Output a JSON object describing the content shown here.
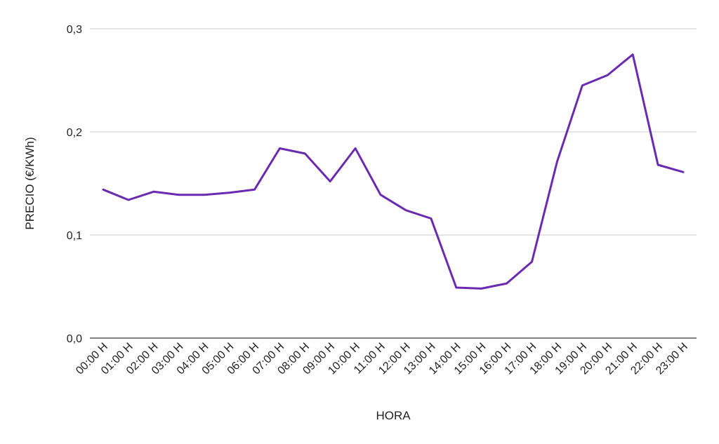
{
  "chart_data": {
    "type": "line",
    "title": "",
    "xlabel": "HORA",
    "ylabel": "PRECIO (€/KWh)",
    "ylim": [
      0,
      0.3
    ],
    "yticks": [
      0.0,
      0.1,
      0.2,
      0.3
    ],
    "ytick_labels": [
      "0,0",
      "0,1",
      "0,2",
      "0,3"
    ],
    "grid": true,
    "legend": "none",
    "categories": [
      "00:00 H",
      "01:00 H",
      "02:00 H",
      "03:00 H",
      "04:00 H",
      "05:00 H",
      "06:00 H",
      "07:00 H",
      "08:00 H",
      "09:00 H",
      "10:00 H",
      "11:00 H",
      "12:00 H",
      "13:00 H",
      "14:00 H",
      "15:00 H",
      "16:00 H",
      "17:00 H",
      "18:00 H",
      "19:00 H",
      "20:00 H",
      "21:00 H",
      "22:00 H",
      "23:00 H"
    ],
    "series": [
      {
        "values": [
          0.144,
          0.134,
          0.142,
          0.139,
          0.139,
          0.141,
          0.144,
          0.184,
          0.179,
          0.152,
          0.184,
          0.139,
          0.124,
          0.116,
          0.049,
          0.048,
          0.053,
          0.074,
          0.171,
          0.245,
          0.255,
          0.275,
          0.168,
          0.161
        ],
        "color": "#6a2bb0"
      }
    ]
  }
}
